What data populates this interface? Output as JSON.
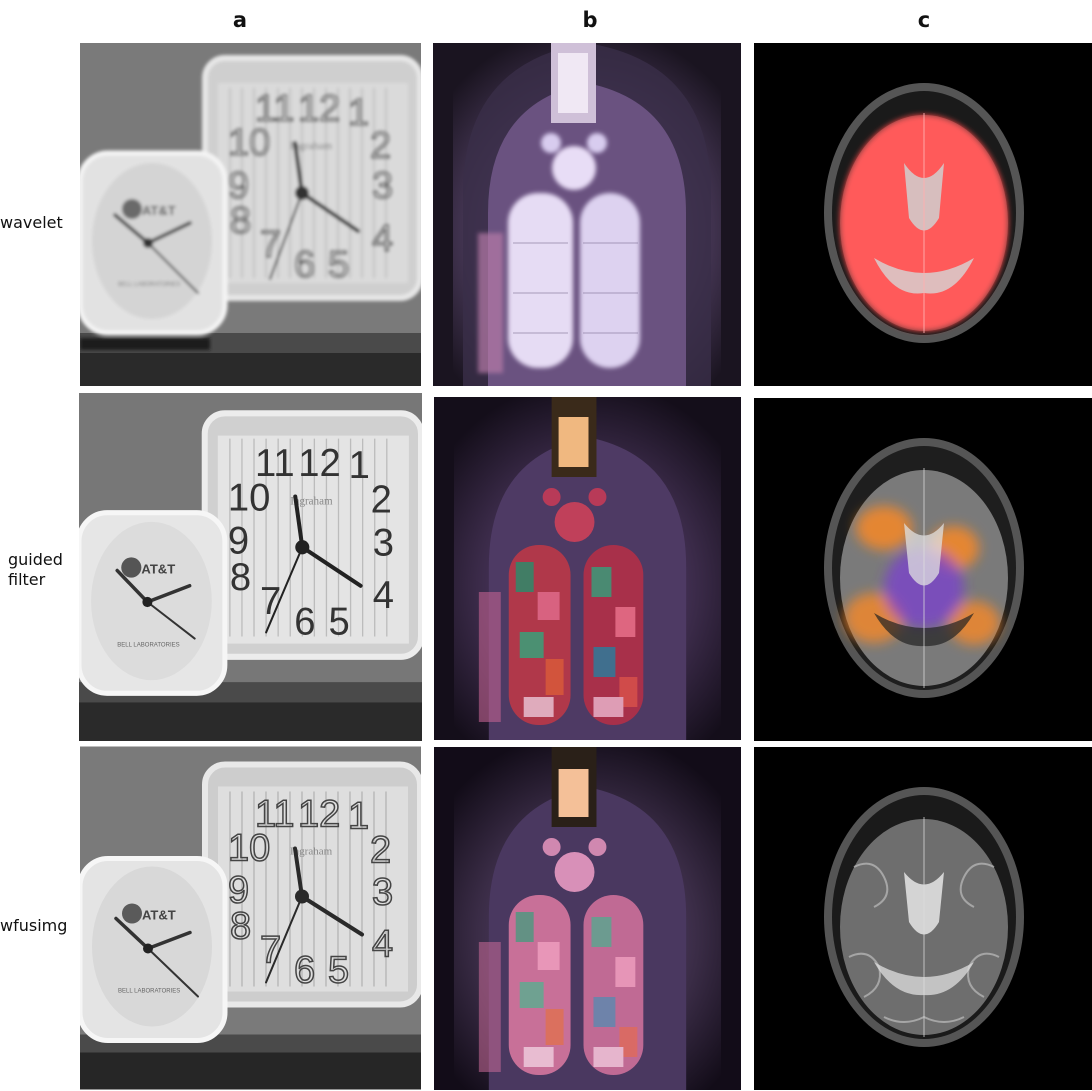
{
  "columns": [
    {
      "label": "a",
      "subject": "clock-photo"
    },
    {
      "label": "b",
      "subject": "stained-glass-window"
    },
    {
      "label": "c",
      "subject": "brain-mri"
    }
  ],
  "rows": [
    {
      "label_lines": [
        "wavelet"
      ]
    },
    {
      "label_lines": [
        "guided",
        "filter"
      ]
    },
    {
      "label_lines": [
        "wfusimg"
      ]
    }
  ],
  "clock": {
    "small_brand": "AT&T",
    "small_maker": "BELL LABORATORIES",
    "large_brand": "Ingraham",
    "large_numbers": [
      "12",
      "1",
      "2",
      "3",
      "4",
      "5",
      "6",
      "7",
      "8",
      "9",
      "10",
      "11"
    ]
  },
  "colors": {
    "wavelet_brain_overlay": "#ff3b3b",
    "guided_brain_overlay_warm": "#ff8a1f",
    "guided_brain_overlay_cool": "#7a3bd6",
    "window_glass_blur": "#d8c8f0",
    "window_glass_sharp": "#c83a6a"
  }
}
